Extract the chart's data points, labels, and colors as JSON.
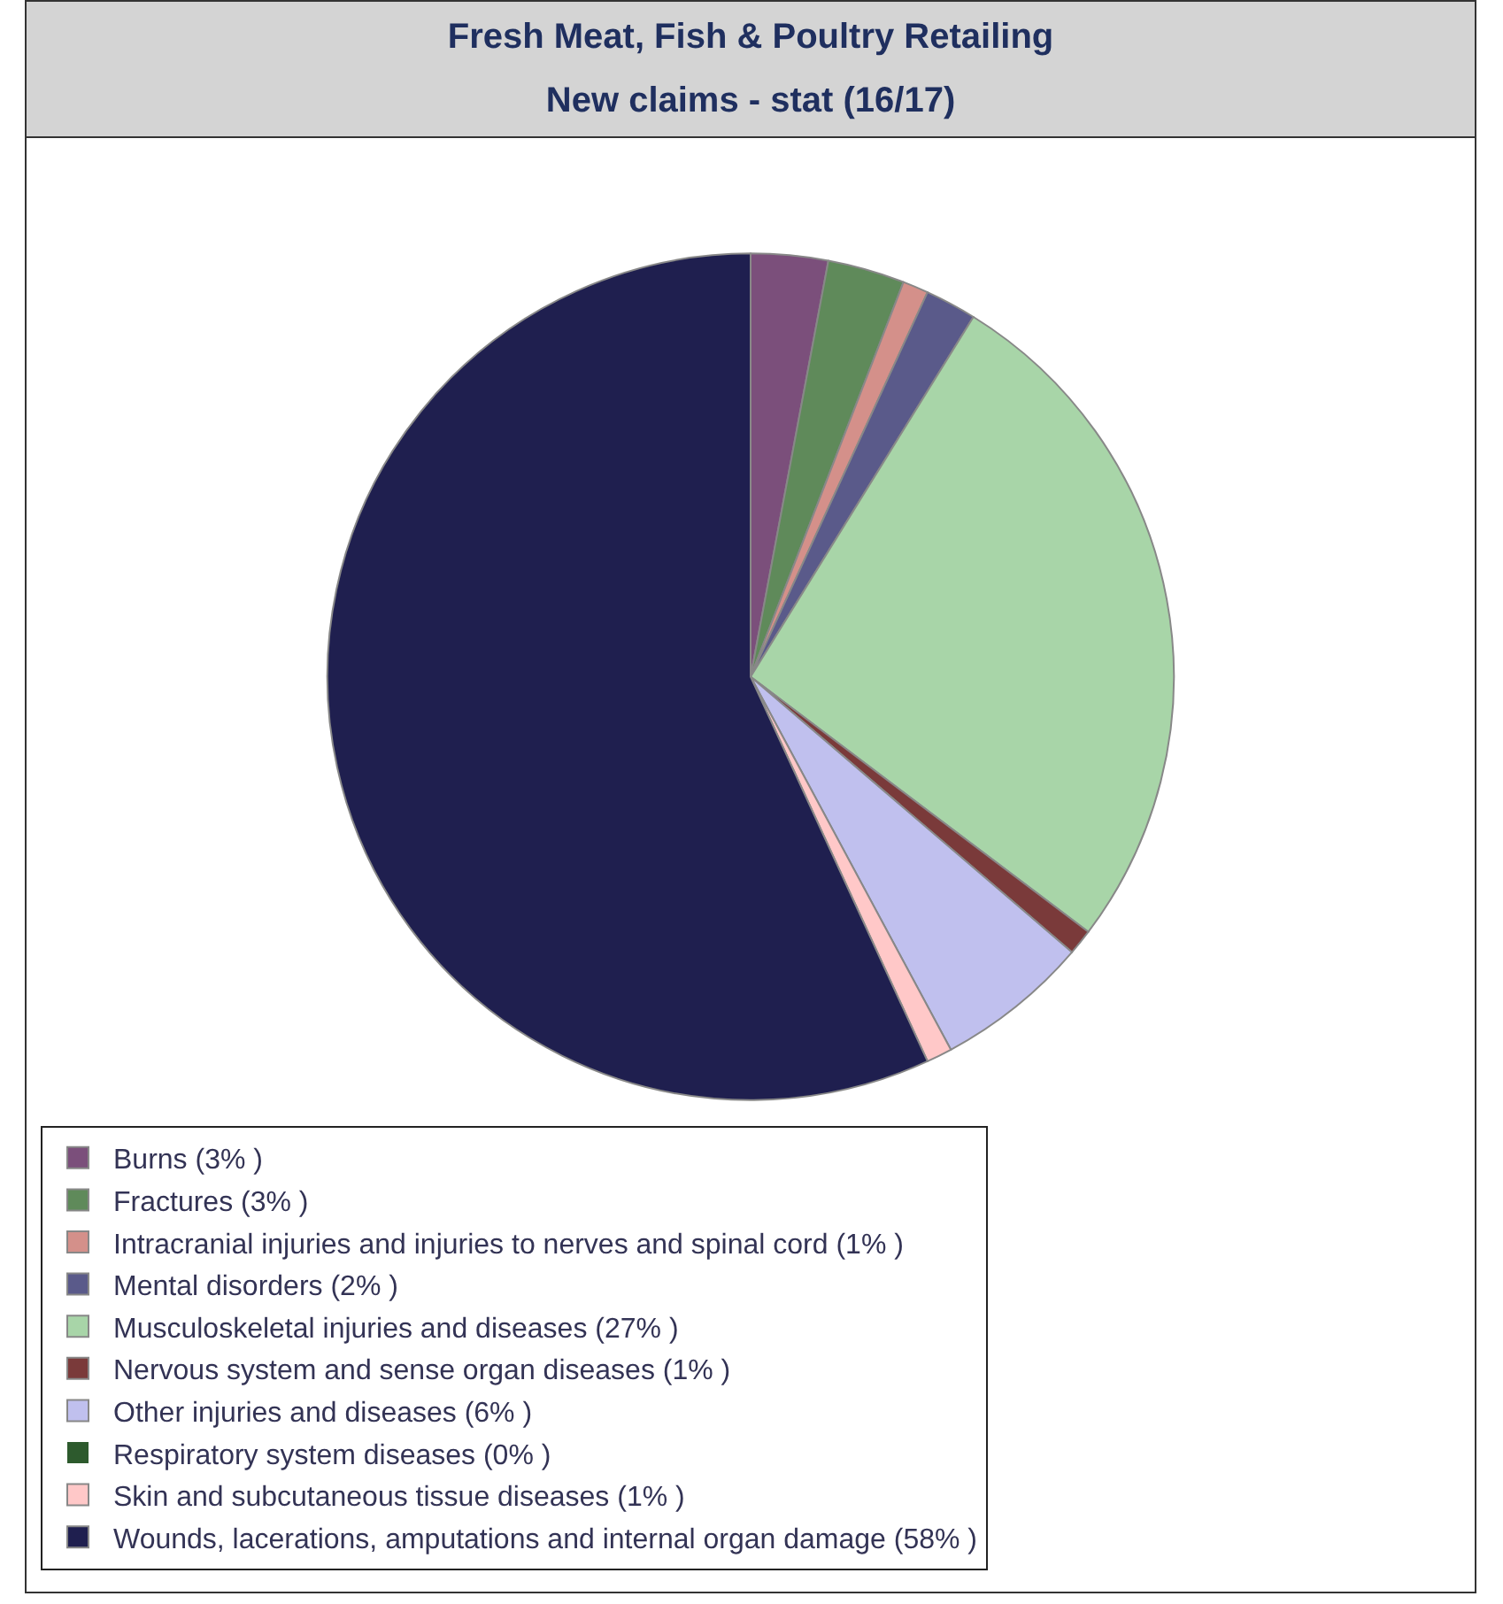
{
  "chart_data": {
    "type": "pie",
    "title": "Fresh Meat, Fish & Poultry Retailing",
    "subtitle": "New claims - stat (16/17)",
    "categories": [
      "Burns (3% )",
      "Fractures (3% )",
      "Intracranial injuries and injuries to nerves and spinal cord (1% )",
      "Mental disorders (2% )",
      "Musculoskeletal injuries and diseases (27% )",
      "Nervous system and sense organ diseases (1% )",
      "Other injuries and diseases (6% )",
      "Respiratory system diseases (0% )",
      "Skin and subcutaneous tissue diseases (1% )",
      "Wounds, lacerations, amputations and internal organ damage (58% )"
    ],
    "values": [
      3,
      3,
      1,
      2,
      27,
      1,
      6,
      0,
      1,
      58
    ],
    "colors": [
      "#7b4f7b",
      "#5f8a5a",
      "#d4908a",
      "#5a5a8a",
      "#a8d5a8",
      "#7a3a3a",
      "#c0c0ee",
      "#2d5a2d",
      "#ffc8c8",
      "#1f1f4f"
    ],
    "legend": "bottom"
  }
}
